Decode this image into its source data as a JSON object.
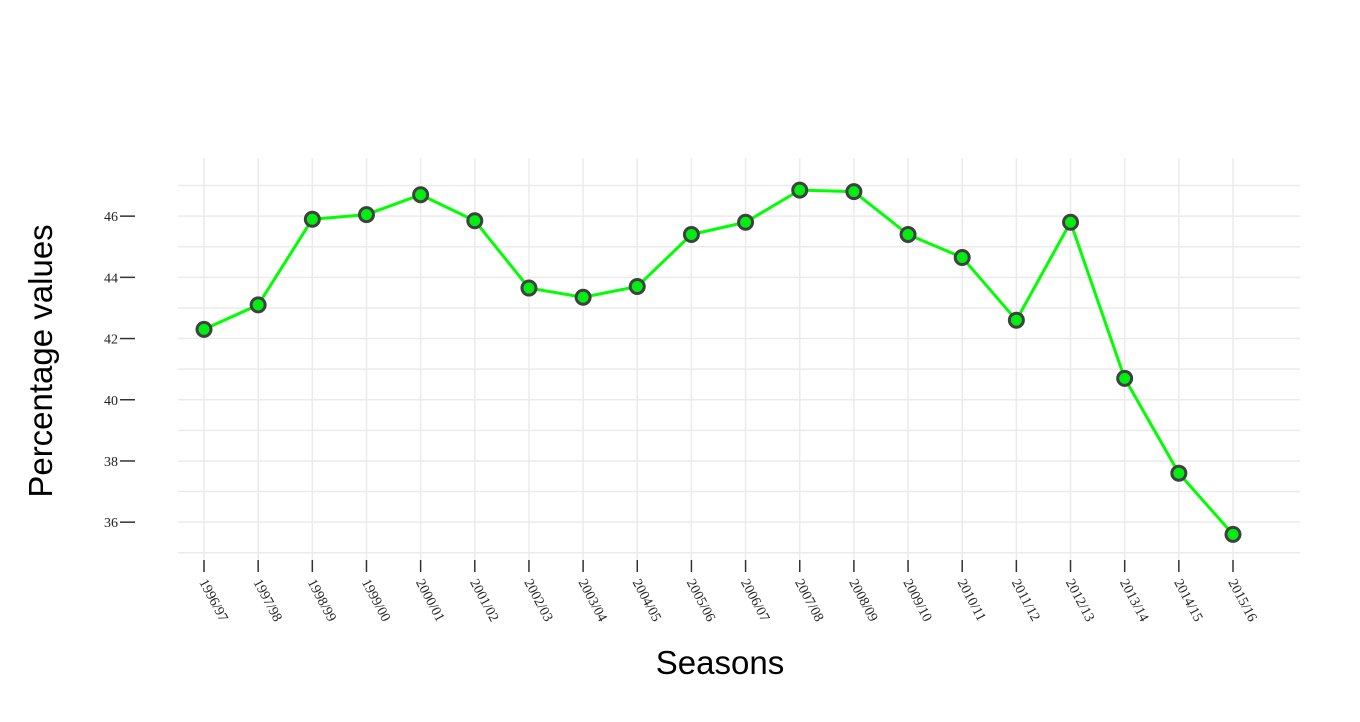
{
  "chart_data": {
    "type": "line",
    "xlabel": "Seasons",
    "ylabel": "Percentage values",
    "categories": [
      "1996/97",
      "1997/98",
      "1998/99",
      "1999/00",
      "2000/01",
      "2001/02",
      "2002/03",
      "2003/04",
      "2004/05",
      "2005/06",
      "2006/07",
      "2007/08",
      "2008/09",
      "2009/10",
      "2010/11",
      "2011/12",
      "2012/13",
      "2013/14",
      "2014/15",
      "2015/16"
    ],
    "values": [
      42.3,
      43.1,
      45.9,
      46.05,
      46.7,
      45.85,
      43.65,
      43.35,
      43.7,
      45.4,
      45.8,
      46.85,
      46.8,
      45.4,
      44.65,
      42.6,
      45.8,
      40.7,
      37.6,
      35.6
    ],
    "yticks": [
      36,
      38,
      40,
      42,
      44,
      46
    ],
    "ylim": [
      34.6,
      47.9
    ],
    "grid": true,
    "colors": {
      "line": "#00ff00",
      "marker_fill": "#00ee11",
      "marker_stroke": "#404040"
    }
  }
}
